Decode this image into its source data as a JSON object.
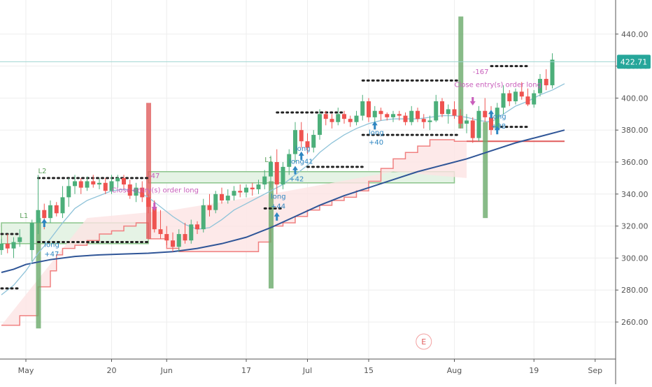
{
  "chart_data": {
    "type": "candlestick",
    "title": "",
    "xlabel": "",
    "ylabel": "",
    "ylim": [
      238,
      455
    ],
    "grid": true,
    "y_ticks": [
      260,
      280,
      300,
      320,
      340,
      360,
      380,
      400,
      420,
      440
    ],
    "y_tick_labels": [
      "260.00",
      "280.00",
      "300.00",
      "320.00",
      "340.00",
      "360.00",
      "380.00",
      "400.00",
      "420.00",
      "440.00"
    ],
    "x_ticks": [
      {
        "label": "May",
        "t": 0
      },
      {
        "label": "20",
        "t": 14
      },
      {
        "label": "Jun",
        "t": 23
      },
      {
        "label": "17",
        "t": 36
      },
      {
        "label": "Jul",
        "t": 46
      },
      {
        "label": "15",
        "t": 56
      },
      {
        "label": "Aug",
        "t": 70
      },
      {
        "label": "19",
        "t": 83
      },
      {
        "label": "Sep",
        "t": 93
      }
    ],
    "last_price": {
      "value": 422.71,
      "label": "422.71",
      "color": "#26a69a"
    },
    "candles": [
      [
        -4,
        305,
        312,
        302,
        309
      ],
      [
        -3,
        309,
        315,
        303,
        306
      ],
      [
        -2,
        306,
        313,
        300,
        310
      ],
      [
        -1,
        310,
        318,
        307,
        313
      ],
      [
        1,
        305,
        324,
        298,
        322
      ],
      [
        2,
        322,
        352,
        315,
        330
      ],
      [
        3,
        330,
        334,
        318,
        325
      ],
      [
        4,
        325,
        336,
        322,
        333
      ],
      [
        5,
        333,
        335,
        326,
        328
      ],
      [
        6,
        328,
        345,
        325,
        338
      ],
      [
        7,
        338,
        350,
        332,
        345
      ],
      [
        8,
        345,
        352,
        340,
        348
      ],
      [
        9,
        348,
        350,
        340,
        344
      ],
      [
        10,
        344,
        351,
        342,
        348
      ],
      [
        11,
        348,
        352,
        344,
        346
      ],
      [
        12,
        346,
        350,
        343,
        347
      ],
      [
        13,
        347,
        350,
        340,
        342
      ],
      [
        14,
        342,
        352,
        340,
        348
      ],
      [
        15,
        348,
        352,
        344,
        350
      ],
      [
        16,
        350,
        352,
        343,
        346
      ],
      [
        17,
        346,
        349,
        337,
        339
      ],
      [
        18,
        339,
        347,
        335,
        344
      ],
      [
        19,
        344,
        348,
        335,
        338
      ],
      [
        20,
        338,
        340,
        328,
        332
      ],
      [
        21,
        332,
        336,
        316,
        318
      ],
      [
        22,
        318,
        330,
        312,
        315
      ],
      [
        23,
        315,
        320,
        308,
        311
      ],
      [
        24,
        311,
        316,
        304,
        307
      ],
      [
        25,
        307,
        318,
        304,
        315
      ],
      [
        26,
        315,
        322,
        309,
        311
      ],
      [
        27,
        311,
        324,
        309,
        321
      ],
      [
        28,
        321,
        323,
        315,
        318
      ],
      [
        29,
        318,
        337,
        316,
        333
      ],
      [
        30,
        333,
        340,
        326,
        330
      ],
      [
        31,
        330,
        342,
        328,
        340
      ],
      [
        32,
        340,
        344,
        334,
        336
      ],
      [
        33,
        336,
        343,
        334,
        339
      ],
      [
        34,
        339,
        345,
        336,
        342
      ],
      [
        35,
        342,
        346,
        338,
        341
      ],
      [
        36,
        341,
        346,
        338,
        344
      ],
      [
        37,
        344,
        347,
        339,
        343
      ],
      [
        38,
        343,
        349,
        340,
        346
      ],
      [
        39,
        346,
        355,
        343,
        351
      ],
      [
        40,
        351,
        364,
        344,
        360
      ],
      [
        41,
        360,
        368,
        340,
        346
      ],
      [
        42,
        346,
        360,
        343,
        357
      ],
      [
        43,
        357,
        368,
        352,
        365
      ],
      [
        44,
        365,
        385,
        360,
        380
      ],
      [
        45,
        380,
        385,
        369,
        373
      ],
      [
        46,
        373,
        378,
        365,
        369
      ],
      [
        47,
        369,
        380,
        366,
        377
      ],
      [
        48,
        377,
        393,
        374,
        390
      ],
      [
        49,
        390,
        392,
        383,
        387
      ],
      [
        50,
        387,
        390,
        381,
        385
      ],
      [
        51,
        385,
        394,
        383,
        390
      ],
      [
        52,
        390,
        392,
        384,
        387
      ],
      [
        53,
        387,
        389,
        382,
        385
      ],
      [
        54,
        385,
        392,
        383,
        389
      ],
      [
        55,
        389,
        402,
        386,
        398
      ],
      [
        56,
        398,
        400,
        385,
        388
      ],
      [
        57,
        388,
        395,
        385,
        392
      ],
      [
        58,
        392,
        394,
        386,
        390
      ],
      [
        59,
        390,
        391,
        386,
        388
      ],
      [
        60,
        388,
        392,
        385,
        390
      ],
      [
        61,
        390,
        392,
        386,
        389
      ],
      [
        62,
        389,
        391,
        383,
        385
      ],
      [
        63,
        385,
        395,
        383,
        392
      ],
      [
        64,
        392,
        394,
        385,
        387
      ],
      [
        65,
        387,
        390,
        381,
        385
      ],
      [
        66,
        385,
        389,
        380,
        386
      ],
      [
        67,
        386,
        402,
        385,
        398
      ],
      [
        68,
        398,
        400,
        388,
        390
      ],
      [
        69,
        390,
        396,
        384,
        393
      ],
      [
        70,
        393,
        398,
        387,
        389
      ],
      [
        71,
        389,
        393,
        381,
        384
      ],
      [
        72,
        384,
        390,
        378,
        386
      ],
      [
        73,
        386,
        388,
        372,
        375
      ],
      [
        74,
        375,
        395,
        373,
        392
      ],
      [
        75,
        392,
        400,
        385,
        388
      ],
      [
        76,
        388,
        395,
        377,
        380
      ],
      [
        77,
        380,
        397,
        378,
        394
      ],
      [
        78,
        394,
        408,
        390,
        403
      ],
      [
        79,
        403,
        405,
        395,
        398
      ],
      [
        80,
        398,
        406,
        396,
        404
      ],
      [
        81,
        404,
        410,
        399,
        401
      ],
      [
        82,
        401,
        406,
        395,
        396
      ],
      [
        83,
        396,
        405,
        394,
        403
      ],
      [
        84,
        403,
        415,
        401,
        412
      ],
      [
        85,
        412,
        418,
        405,
        408
      ],
      [
        86,
        408,
        428,
        406,
        424
      ]
    ],
    "series": [
      {
        "kind": "ema_long",
        "color": "#2f5597",
        "points": [
          [
            -4,
            291
          ],
          [
            -2,
            293
          ],
          [
            0,
            296
          ],
          [
            4,
            299
          ],
          [
            8,
            301
          ],
          [
            12,
            302
          ],
          [
            16,
            302.5
          ],
          [
            20,
            303
          ],
          [
            24,
            304
          ],
          [
            28,
            306
          ],
          [
            32,
            309
          ],
          [
            36,
            313
          ],
          [
            40,
            319
          ],
          [
            44,
            326
          ],
          [
            48,
            333
          ],
          [
            52,
            339
          ],
          [
            56,
            344
          ],
          [
            60,
            349
          ],
          [
            64,
            354
          ],
          [
            68,
            358
          ],
          [
            72,
            362
          ],
          [
            76,
            367
          ],
          [
            80,
            372
          ],
          [
            84,
            376
          ],
          [
            88,
            380
          ]
        ]
      },
      {
        "kind": "ema_short",
        "color": "#8fc3d9",
        "points": [
          [
            -4,
            277
          ],
          [
            -2,
            283
          ],
          [
            0,
            292
          ],
          [
            2,
            303
          ],
          [
            4,
            312
          ],
          [
            6,
            322
          ],
          [
            8,
            331
          ],
          [
            10,
            336
          ],
          [
            12,
            339
          ],
          [
            14,
            342
          ],
          [
            16,
            343
          ],
          [
            18,
            342
          ],
          [
            20,
            338
          ],
          [
            22,
            332
          ],
          [
            24,
            326
          ],
          [
            26,
            321
          ],
          [
            28,
            318
          ],
          [
            30,
            319
          ],
          [
            32,
            324
          ],
          [
            34,
            330
          ],
          [
            36,
            334
          ],
          [
            38,
            338
          ],
          [
            40,
            342
          ],
          [
            42,
            346
          ],
          [
            44,
            352
          ],
          [
            46,
            358
          ],
          [
            48,
            366
          ],
          [
            50,
            372
          ],
          [
            52,
            377
          ],
          [
            54,
            381
          ],
          [
            56,
            384
          ],
          [
            58,
            386
          ],
          [
            60,
            387
          ],
          [
            62,
            387
          ],
          [
            64,
            387
          ],
          [
            66,
            388
          ],
          [
            68,
            389
          ],
          [
            70,
            389
          ],
          [
            72,
            388
          ],
          [
            74,
            386
          ],
          [
            76,
            385
          ],
          [
            78,
            390
          ],
          [
            80,
            395
          ],
          [
            82,
            398
          ],
          [
            84,
            402
          ],
          [
            86,
            405
          ],
          [
            88,
            409
          ]
        ]
      }
    ],
    "red_stop_steps": [
      [
        -4,
        258
      ],
      [
        -1,
        258
      ],
      [
        -1,
        264
      ],
      [
        2,
        264
      ],
      [
        2,
        282
      ],
      [
        4,
        282
      ],
      [
        4,
        292
      ],
      [
        5,
        292
      ],
      [
        5,
        302
      ],
      [
        6,
        302
      ],
      [
        6,
        306
      ],
      [
        8,
        306
      ],
      [
        8,
        308
      ],
      [
        10,
        308
      ],
      [
        10,
        311
      ],
      [
        12,
        311
      ],
      [
        12,
        315
      ],
      [
        14,
        315
      ],
      [
        14,
        317
      ],
      [
        16,
        317
      ],
      [
        16,
        320
      ],
      [
        18,
        320
      ],
      [
        18,
        322
      ],
      [
        20,
        322
      ],
      [
        20,
        312
      ],
      [
        23,
        312
      ],
      [
        23,
        306
      ],
      [
        25,
        306
      ],
      [
        25,
        304
      ],
      [
        38,
        304
      ],
      [
        38,
        310
      ],
      [
        40,
        310
      ],
      [
        40,
        320
      ],
      [
        42,
        320
      ],
      [
        42,
        322
      ],
      [
        44,
        322
      ],
      [
        44,
        326
      ],
      [
        46,
        326
      ],
      [
        46,
        330
      ],
      [
        48,
        330
      ],
      [
        48,
        333
      ],
      [
        50,
        333
      ],
      [
        50,
        336
      ],
      [
        52,
        336
      ],
      [
        52,
        338
      ],
      [
        54,
        338
      ],
      [
        54,
        342
      ],
      [
        56,
        342
      ],
      [
        56,
        348
      ],
      [
        58,
        348
      ],
      [
        58,
        356
      ],
      [
        60,
        356
      ],
      [
        60,
        362
      ],
      [
        62,
        362
      ],
      [
        62,
        366
      ],
      [
        64,
        366
      ],
      [
        64,
        370
      ],
      [
        66,
        370
      ],
      [
        66,
        374
      ],
      [
        70,
        374
      ],
      [
        70,
        373
      ],
      [
        72,
        373
      ],
      [
        72,
        373
      ]
    ],
    "green_bands": [
      {
        "t0": -4,
        "t1": 20,
        "low": 309,
        "high": 322
      },
      {
        "t0": 20,
        "t1": 70,
        "low": 347,
        "high": 354
      }
    ],
    "dot_lines": [
      {
        "t0": -4,
        "t1": -1,
        "v": 281
      },
      {
        "t0": -4,
        "t1": -1,
        "v": 315
      },
      {
        "t0": 2,
        "t1": 20,
        "v": 350
      },
      {
        "t0": 2,
        "t1": 20,
        "v": 310
      },
      {
        "t0": 41,
        "t1": 52,
        "v": 391
      },
      {
        "t0": 46,
        "t1": 55,
        "v": 357
      },
      {
        "t0": 39,
        "t1": 42,
        "v": 331
      },
      {
        "t0": 55,
        "t1": 71,
        "v": 411
      },
      {
        "t0": 55,
        "t1": 71,
        "v": 377
      },
      {
        "t0": 76,
        "t1": 82,
        "v": 420
      },
      {
        "t0": 76,
        "t1": 82,
        "v": 382
      }
    ],
    "signal_bars": [
      {
        "t": 2,
        "low": 256,
        "high": 325,
        "color": "#6aaa6a"
      },
      {
        "t": 20,
        "low": 312,
        "high": 397,
        "color": "#e05c5c"
      },
      {
        "t": 40,
        "low": 281,
        "high": 348,
        "color": "#6aaa6a"
      },
      {
        "t": 71,
        "low": 381,
        "high": 451,
        "color": "#6aaa6a"
      },
      {
        "t": 75,
        "low": 325,
        "high": 385,
        "color": "#6aaa6a"
      }
    ],
    "labels": [
      {
        "text": "L2",
        "t": 2,
        "v": 353,
        "color": "#5aa05a"
      },
      {
        "text": "L1",
        "t": -1,
        "v": 325,
        "color": "#5aa05a"
      },
      {
        "text": "long",
        "t": 3,
        "v": 307,
        "color": "#2e86c1"
      },
      {
        "text": "+47",
        "t": 3,
        "v": 301,
        "color": "#2e86c1"
      },
      {
        "text": "-47",
        "t": 20,
        "v": 350,
        "color": "#c85dbb"
      },
      {
        "text": "Close entry(s) order long",
        "t": 14,
        "v": 341,
        "color": "#c85dbb"
      },
      {
        "text": "L1",
        "t": 39,
        "v": 360,
        "color": "#5aa05a"
      },
      {
        "text": "long",
        "t": 40,
        "v": 337,
        "color": "#2e86c1"
      },
      {
        "text": "+44",
        "t": 40,
        "v": 331,
        "color": "#2e86c1"
      },
      {
        "text": "long",
        "t": 44,
        "v": 367,
        "color": "#2e86c1"
      },
      {
        "text": "long41",
        "t": 43,
        "v": 359,
        "color": "#2e86c1"
      },
      {
        "text": "+42",
        "t": 43,
        "v": 348,
        "color": "#2e86c1"
      },
      {
        "text": "long",
        "t": 56,
        "v": 377,
        "color": "#2e86c1"
      },
      {
        "text": "+40",
        "t": 56,
        "v": 371,
        "color": "#2e86c1"
      },
      {
        "text": "-167",
        "t": 73,
        "v": 415,
        "color": "#c85dbb"
      },
      {
        "text": "Close entry(s) order long",
        "t": 70,
        "v": 407,
        "color": "#c85dbb"
      },
      {
        "text": "long",
        "t": 76,
        "v": 387,
        "color": "#2e86c1"
      },
      {
        "text": "+38",
        "t": 76,
        "v": 381,
        "color": "#2e86c1"
      }
    ],
    "arrows_up": [
      [
        3,
        322
      ],
      [
        41,
        326
      ],
      [
        44,
        355
      ],
      [
        45,
        364
      ],
      [
        57,
        383
      ],
      [
        76,
        390
      ],
      [
        77,
        380
      ]
    ],
    "arrows_down": [
      [
        21,
        332
      ],
      [
        73,
        398
      ]
    ],
    "earnings_marker": {
      "text": "E",
      "t": 65
    },
    "colors": {
      "up": "#4caf7a",
      "down": "#ef5350",
      "grid": "#eeeeee",
      "axis": "#555555",
      "band_fill": "#e5f3e5",
      "stop_fill": "#fde4e4"
    }
  }
}
